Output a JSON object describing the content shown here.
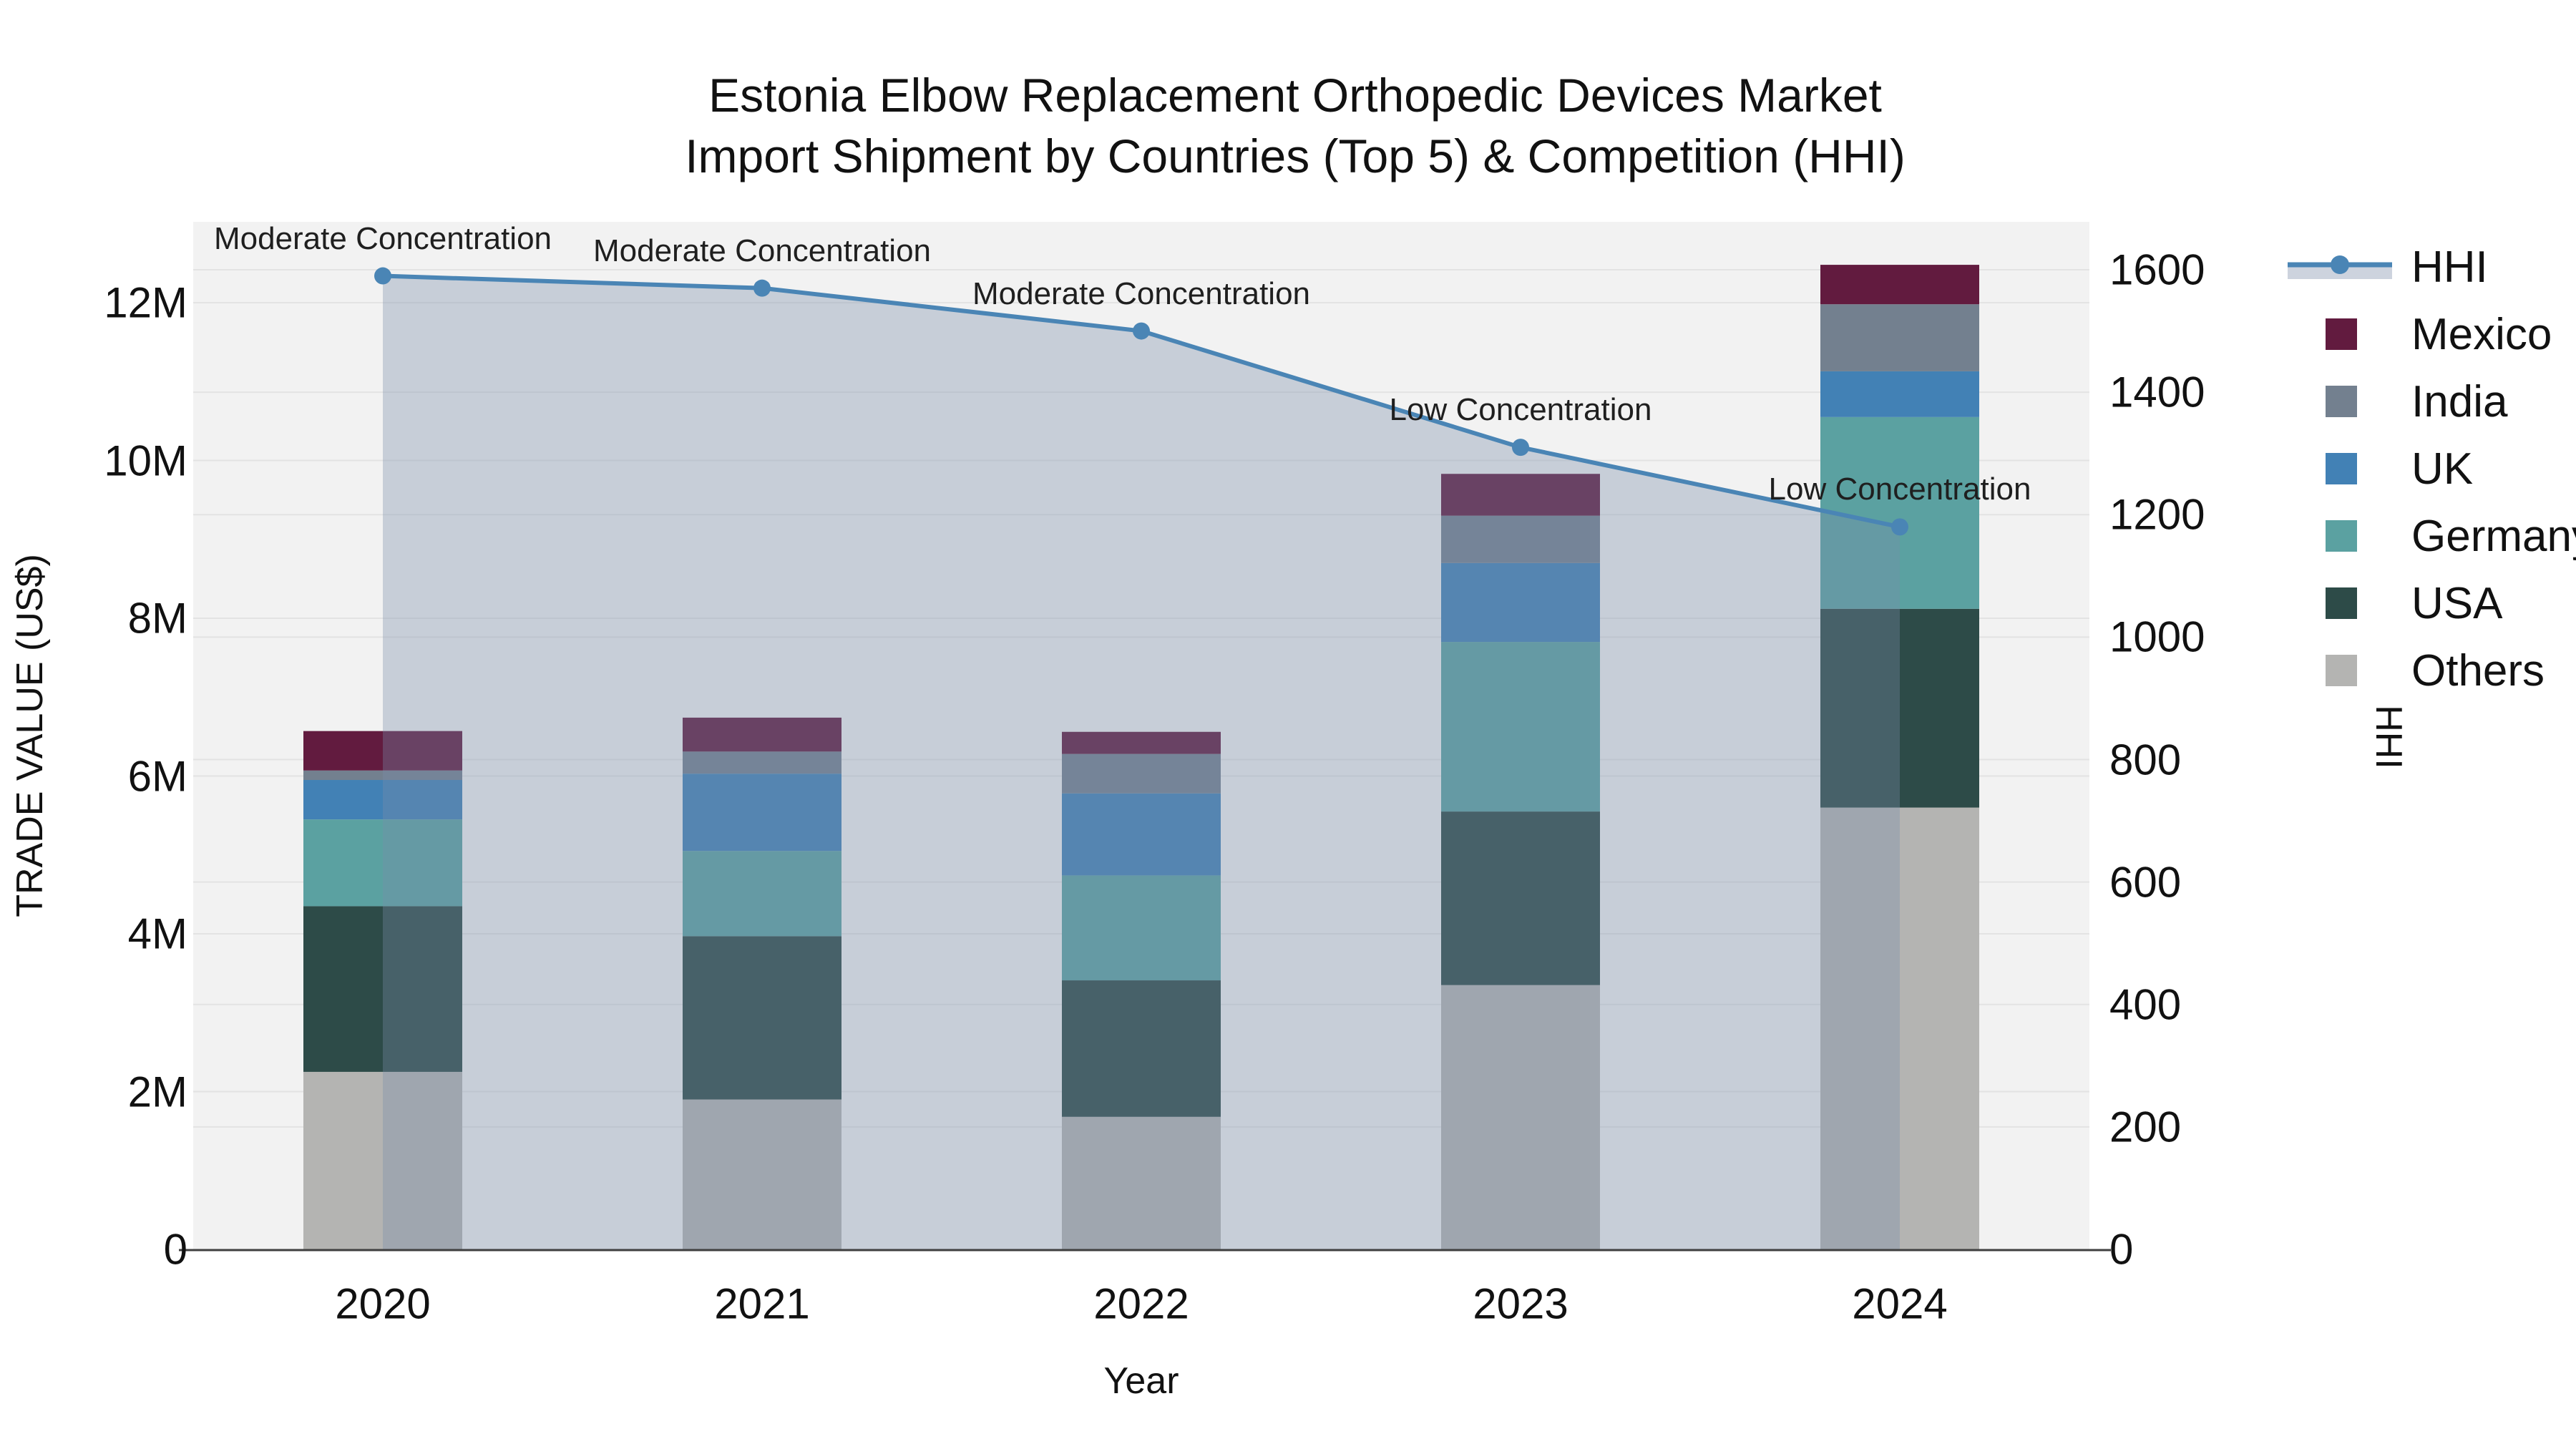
{
  "title": {
    "line1": "Estonia Elbow Replacement Orthopedic Devices Market",
    "line2": "Import Shipment by Countries (Top 5) & Competition (HHI)"
  },
  "axes": {
    "left": {
      "label": "TRADE VALUE (US$)",
      "ticks": [
        "0",
        "2M",
        "4M",
        "6M",
        "8M",
        "10M",
        "12M"
      ]
    },
    "right": {
      "label": "HHI",
      "ticks": [
        "0",
        "200",
        "400",
        "600",
        "800",
        "1000",
        "1200",
        "1400",
        "1600"
      ]
    },
    "x": {
      "label": "Year",
      "ticks": [
        "2020",
        "2021",
        "2022",
        "2023",
        "2024"
      ]
    }
  },
  "legend": {
    "position": "right-outside",
    "entries": [
      "HHI",
      "Mexico",
      "India",
      "UK",
      "Germany",
      "USA",
      "Others"
    ]
  },
  "colors": {
    "plot_bg": "#f2f2f2",
    "grid": "#e3e3e3",
    "spine": "#3f3f3f",
    "hhi_line": "#4a85b5",
    "hhi_area_fill": "rgba(120,140,170,0.35)"
  },
  "chart_data": {
    "type": "bar",
    "bar_mode": "stacked",
    "secondary_line": "HHI",
    "categories": [
      "2020",
      "2021",
      "2022",
      "2023",
      "2024"
    ],
    "series": [
      {
        "name": "Others",
        "color": "#b4b4b2",
        "values": [
          2.25,
          1.9,
          1.68,
          3.35,
          5.6
        ]
      },
      {
        "name": "USA",
        "color": "#2d4b48",
        "values": [
          2.1,
          2.07,
          1.73,
          2.2,
          2.52
        ]
      },
      {
        "name": "Germany",
        "color": "#5ba1a1",
        "values": [
          1.1,
          1.08,
          1.33,
          2.15,
          2.43
        ]
      },
      {
        "name": "UK",
        "color": "#4281b5",
        "values": [
          0.5,
          0.98,
          1.04,
          1.0,
          0.58
        ]
      },
      {
        "name": "India",
        "color": "#73808f",
        "values": [
          0.12,
          0.28,
          0.5,
          0.6,
          0.85
        ]
      },
      {
        "name": "Mexico",
        "color": "#621b3f",
        "values": [
          0.5,
          0.43,
          0.28,
          0.53,
          0.5
        ]
      }
    ],
    "line_series": {
      "name": "HHI",
      "color": "#4a85b5",
      "values": [
        1590,
        1570,
        1500,
        1310,
        1180
      ]
    },
    "annotations": [
      {
        "x": "2020",
        "text": "Moderate Concentration"
      },
      {
        "x": "2021",
        "text": "Moderate Concentration"
      },
      {
        "x": "2022",
        "text": "Moderate Concentration"
      },
      {
        "x": "2023",
        "text": "Low Concentration"
      },
      {
        "x": "2024",
        "text": "Low Concentration"
      }
    ],
    "title": "Estonia Elbow Replacement Orthopedic Devices Market — Import Shipment by Countries (Top 5) & Competition (HHI)",
    "xlabel": "Year",
    "ylabel_left": "TRADE VALUE (US$)",
    "ylabel_right": "HHI",
    "ylim_left_M": [
      0,
      13.0
    ],
    "ylim_right": [
      0,
      1600
    ],
    "grid": true,
    "legend_position": "right"
  }
}
